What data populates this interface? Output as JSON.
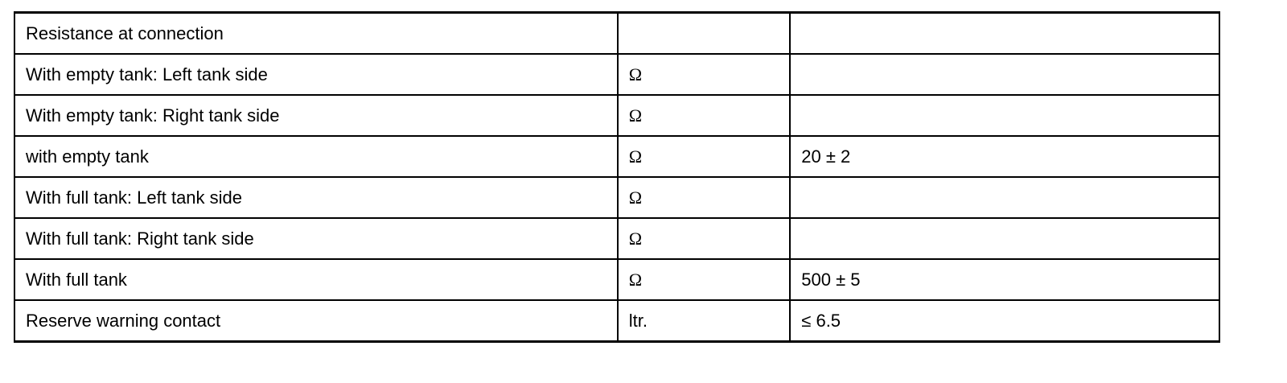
{
  "table": {
    "rows": [
      {
        "label": "Resistance at connection",
        "unit": "",
        "value": ""
      },
      {
        "label": "With empty tank: Left tank side",
        "unit": "Ω",
        "value": ""
      },
      {
        "label": "With empty tank: Right tank side",
        "unit": "Ω",
        "value": ""
      },
      {
        "label": "with empty tank",
        "unit": "Ω",
        "value": "20 ± 2"
      },
      {
        "label": "With full tank: Left tank side",
        "unit": "Ω",
        "value": ""
      },
      {
        "label": "With full tank: Right tank side",
        "unit": "Ω",
        "value": ""
      },
      {
        "label": "With full tank",
        "unit": "Ω",
        "value": "500 ± 5"
      },
      {
        "label": "Reserve warning contact",
        "unit": "ltr.",
        "value": "≤ 6.5"
      }
    ]
  }
}
